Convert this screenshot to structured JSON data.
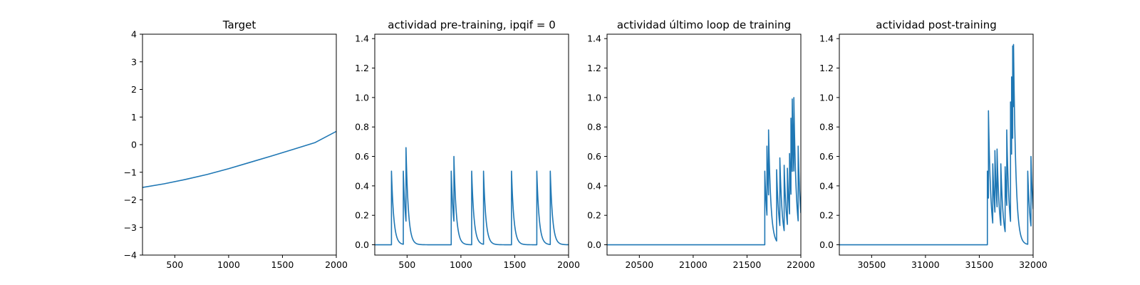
{
  "chart_data": [
    {
      "type": "line",
      "title": "Target",
      "xlabel": "",
      "ylabel": "",
      "xlim": [
        200,
        2000
      ],
      "ylim": [
        -4,
        4
      ],
      "xticks": [
        500,
        1000,
        1500,
        2000
      ],
      "yticks": [
        -4,
        -3,
        -2,
        -1,
        0,
        1,
        2,
        3,
        4
      ],
      "xtick_labels": [
        "500",
        "1000",
        "1500",
        "2000"
      ],
      "ytick_labels": [
        "−4",
        "−3",
        "−2",
        "−1",
        "0",
        "1",
        "2",
        "3",
        "4"
      ],
      "grid": false,
      "series": [
        {
          "color": "#1f77b4",
          "x": [
            200,
            400,
            600,
            800,
            1000,
            1200,
            1400,
            1600,
            1800,
            2000
          ],
          "y": [
            -1.55,
            -1.42,
            -1.26,
            -1.08,
            -0.87,
            -0.64,
            -0.41,
            -0.17,
            0.07,
            0.48
          ]
        }
      ]
    },
    {
      "type": "line",
      "title": "actividad pre-training, ipqif = 0",
      "xlabel": "",
      "ylabel": "",
      "xlim": [
        200,
        2000
      ],
      "ylim": [
        -0.07,
        1.43
      ],
      "xticks": [
        500,
        1000,
        1500,
        2000
      ],
      "yticks": [
        0.0,
        0.2,
        0.4,
        0.6,
        0.8,
        1.0,
        1.2,
        1.4
      ],
      "xtick_labels": [
        "500",
        "1000",
        "1500",
        "2000"
      ],
      "ytick_labels": [
        "0.0",
        "0.2",
        "0.4",
        "0.6",
        "0.8",
        "1.0",
        "1.2",
        "1.4"
      ],
      "grid": false,
      "series": [
        {
          "color": "#1f77b4",
          "baseline": 0,
          "decay": 22,
          "spikes": [
            {
              "x": 355,
              "peak": 0.5
            },
            {
              "x": 465,
              "peak": 0.5
            },
            {
              "x": 490,
              "peak": 0.66
            },
            {
              "x": 910,
              "peak": 0.5
            },
            {
              "x": 935,
              "peak": 0.6
            },
            {
              "x": 1100,
              "peak": 0.5
            },
            {
              "x": 1210,
              "peak": 0.5
            },
            {
              "x": 1470,
              "peak": 0.5
            },
            {
              "x": 1705,
              "peak": 0.5
            },
            {
              "x": 1830,
              "peak": 0.5
            }
          ]
        }
      ]
    },
    {
      "type": "line",
      "title": "actividad último loop de training",
      "xlabel": "",
      "ylabel": "",
      "xlim": [
        20200,
        22000
      ],
      "ylim": [
        -0.07,
        1.43
      ],
      "xticks": [
        20500,
        21000,
        21500,
        22000
      ],
      "yticks": [
        0.0,
        0.2,
        0.4,
        0.6,
        0.8,
        1.0,
        1.2,
        1.4
      ],
      "xtick_labels": [
        "20500",
        "21000",
        "21500",
        "22000"
      ],
      "ytick_labels": [
        "0.0",
        "0.2",
        "0.4",
        "0.6",
        "0.8",
        "1.0",
        "1.2",
        "1.4"
      ],
      "grid": false,
      "series": [
        {
          "color": "#1f77b4",
          "baseline": 0,
          "decay": 22,
          "spikes": [
            {
              "x": 21665,
              "peak": 0.5
            },
            {
              "x": 21685,
              "peak": 0.67
            },
            {
              "x": 21700,
              "peak": 0.78
            },
            {
              "x": 21775,
              "peak": 0.51
            },
            {
              "x": 21805,
              "peak": 0.59
            },
            {
              "x": 21845,
              "peak": 0.54
            },
            {
              "x": 21875,
              "peak": 0.52
            },
            {
              "x": 21895,
              "peak": 0.62
            },
            {
              "x": 21908,
              "peak": 0.86
            },
            {
              "x": 21920,
              "peak": 0.99
            },
            {
              "x": 21935,
              "peak": 1.0
            },
            {
              "x": 21975,
              "peak": 0.67
            }
          ]
        }
      ]
    },
    {
      "type": "line",
      "title": "actividad post-training",
      "xlabel": "",
      "ylabel": "",
      "xlim": [
        30200,
        32000
      ],
      "ylim": [
        -0.07,
        1.43
      ],
      "xticks": [
        30500,
        31000,
        31500,
        32000
      ],
      "yticks": [
        0.0,
        0.2,
        0.4,
        0.6,
        0.8,
        1.0,
        1.2,
        1.4
      ],
      "xtick_labels": [
        "30500",
        "31000",
        "31500",
        "32000"
      ],
      "ytick_labels": [
        "0.0",
        "0.2",
        "0.4",
        "0.6",
        "0.8",
        "1.0",
        "1.2",
        "1.4"
      ],
      "grid": false,
      "series": [
        {
          "color": "#1f77b4",
          "baseline": 0,
          "decay": 22,
          "spikes": [
            {
              "x": 31575,
              "peak": 0.5
            },
            {
              "x": 31585,
              "peak": 0.91
            },
            {
              "x": 31625,
              "peak": 0.55
            },
            {
              "x": 31645,
              "peak": 0.64
            },
            {
              "x": 31665,
              "peak": 0.65
            },
            {
              "x": 31700,
              "peak": 0.55
            },
            {
              "x": 31740,
              "peak": 0.53
            },
            {
              "x": 31755,
              "peak": 0.78
            },
            {
              "x": 31790,
              "peak": 0.97
            },
            {
              "x": 31800,
              "peak": 1.14
            },
            {
              "x": 31810,
              "peak": 1.35
            },
            {
              "x": 31818,
              "peak": 1.36
            },
            {
              "x": 31950,
              "peak": 0.5
            },
            {
              "x": 31980,
              "peak": 0.6
            }
          ]
        }
      ]
    }
  ]
}
